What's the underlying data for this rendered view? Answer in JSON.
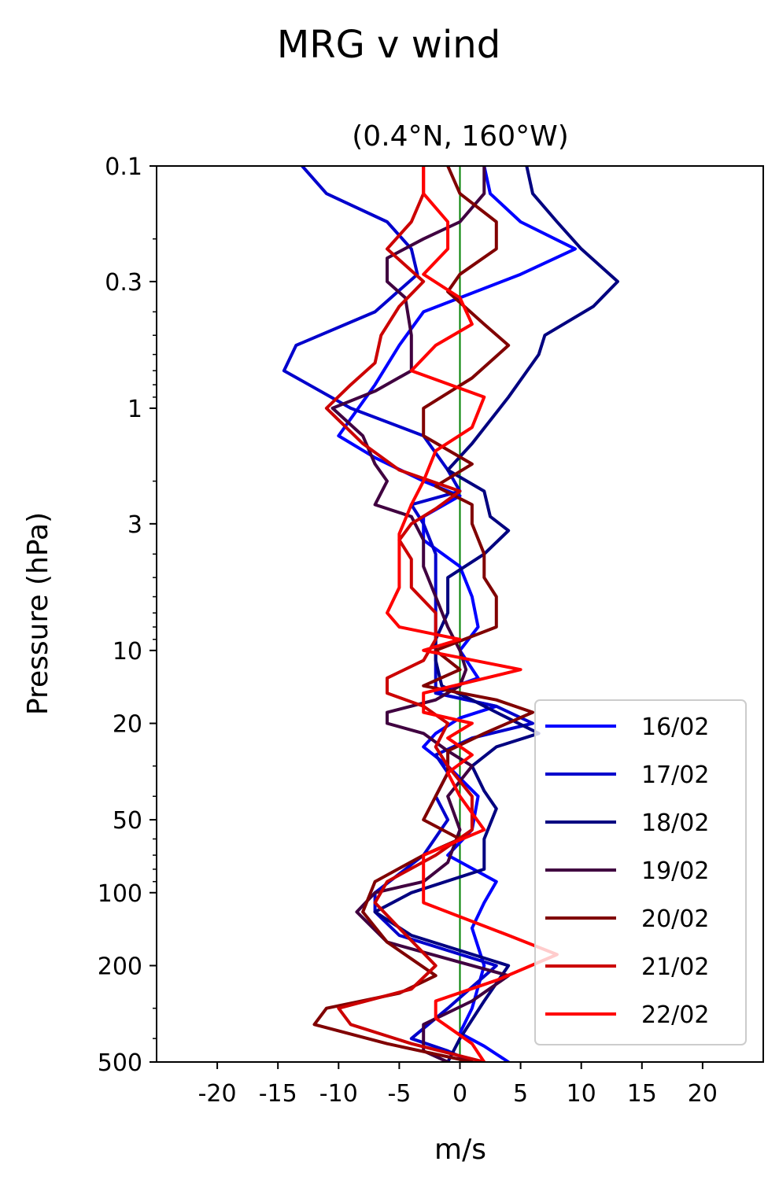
{
  "title": "MRG v wind",
  "chart_data": {
    "type": "line",
    "title": "(0.4°N, 160°W)",
    "xlabel": "m/s",
    "ylabel": "Pressure (hPa)",
    "xlim": [
      -25,
      25
    ],
    "ylim": [
      500,
      0.1
    ],
    "yscale": "log",
    "xticks": [
      -20,
      -15,
      -10,
      -5,
      0,
      5,
      10,
      15,
      20
    ],
    "xtick_labels": [
      "-20",
      "-15",
      "-10",
      "-5",
      "0",
      "5",
      "10",
      "15",
      "20"
    ],
    "yticks": [
      0.1,
      0.3,
      1,
      3,
      10,
      20,
      50,
      100,
      200,
      500
    ],
    "ytick_labels": [
      "0.1",
      "0.3",
      "1",
      "3",
      "10",
      "20",
      "50",
      "100",
      "200",
      "500"
    ],
    "reference_line": {
      "x": 0,
      "color": "#008000"
    },
    "legend_position": "lower-right",
    "grid": false,
    "series": [
      {
        "name": "16/02",
        "color": "#0000ff",
        "points": [
          [
            2,
            0.1
          ],
          [
            2.5,
            0.13
          ],
          [
            5,
            0.17
          ],
          [
            9.5,
            0.22
          ],
          [
            5,
            0.28
          ],
          [
            -3,
            0.4
          ],
          [
            -5,
            0.55
          ],
          [
            -7,
            0.8
          ],
          [
            -10,
            1.3
          ],
          [
            -7,
            1.6
          ],
          [
            -3,
            2.0
          ],
          [
            0,
            2.3
          ],
          [
            -3,
            2.8
          ],
          [
            -3,
            3.5
          ],
          [
            0,
            4.5
          ],
          [
            1,
            6
          ],
          [
            1.5,
            8
          ],
          [
            0,
            10
          ],
          [
            1.5,
            13
          ],
          [
            -2,
            15
          ],
          [
            3,
            17
          ],
          [
            0,
            19
          ],
          [
            -2,
            22
          ],
          [
            -3,
            25
          ],
          [
            -1,
            30
          ],
          [
            1.5,
            40
          ],
          [
            1,
            55
          ],
          [
            -1,
            70
          ],
          [
            3,
            90
          ],
          [
            2,
            110
          ],
          [
            1,
            140
          ],
          [
            2,
            200
          ],
          [
            1,
            300
          ],
          [
            0,
            380
          ],
          [
            2,
            430
          ],
          [
            4,
            500
          ]
        ]
      },
      {
        "name": "17/02",
        "color": "#0000cc",
        "points": [
          [
            -13,
            0.1
          ],
          [
            -11,
            0.13
          ],
          [
            -6,
            0.17
          ],
          [
            -4,
            0.22
          ],
          [
            -3.5,
            0.28
          ],
          [
            -7,
            0.4
          ],
          [
            -13.5,
            0.55
          ],
          [
            -14.5,
            0.7
          ],
          [
            -9,
            1.0
          ],
          [
            -3,
            1.3
          ],
          [
            -1,
            1.8
          ],
          [
            0,
            2.2
          ],
          [
            -4,
            2.5
          ],
          [
            -3,
            3.0
          ],
          [
            -2,
            4
          ],
          [
            -2,
            6
          ],
          [
            -2,
            8
          ],
          [
            -2,
            10
          ],
          [
            -2,
            13
          ],
          [
            -2,
            15
          ],
          [
            3,
            17
          ],
          [
            6,
            20
          ],
          [
            1,
            23
          ],
          [
            -2,
            27
          ],
          [
            -1,
            32
          ],
          [
            -2,
            40
          ],
          [
            -1,
            50
          ],
          [
            -3,
            70
          ],
          [
            -7,
            100
          ],
          [
            -7,
            120
          ],
          [
            -5,
            150
          ],
          [
            3,
            200
          ],
          [
            -1,
            300
          ],
          [
            -4,
            400
          ],
          [
            -1,
            450
          ],
          [
            1,
            500
          ]
        ]
      },
      {
        "name": "18/02",
        "color": "#000080",
        "points": [
          [
            5.5,
            0.1
          ],
          [
            6,
            0.13
          ],
          [
            8,
            0.17
          ],
          [
            10,
            0.22
          ],
          [
            13,
            0.3
          ],
          [
            11,
            0.38
          ],
          [
            7,
            0.5
          ],
          [
            6.5,
            0.6
          ],
          [
            4,
            0.9
          ],
          [
            1,
            1.4
          ],
          [
            -1,
            1.8
          ],
          [
            2,
            2.2
          ],
          [
            2.5,
            2.8
          ],
          [
            4,
            3.2
          ],
          [
            2,
            4
          ],
          [
            -1,
            5
          ],
          [
            -1,
            7
          ],
          [
            -2,
            9
          ],
          [
            -2,
            11
          ],
          [
            -1.5,
            14
          ],
          [
            1,
            16
          ],
          [
            3,
            18
          ],
          [
            6.5,
            22
          ],
          [
            3,
            25
          ],
          [
            1,
            30
          ],
          [
            2,
            38
          ],
          [
            3,
            45
          ],
          [
            2,
            60
          ],
          [
            2,
            80
          ],
          [
            -4,
            100
          ],
          [
            -7,
            120
          ],
          [
            -4,
            150
          ],
          [
            4,
            200
          ],
          [
            2,
            280
          ],
          [
            0,
            400
          ],
          [
            -1,
            500
          ]
        ]
      },
      {
        "name": "19/02",
        "color": "#400040",
        "points": [
          [
            2,
            0.1
          ],
          [
            2,
            0.13
          ],
          [
            0,
            0.17
          ],
          [
            -3,
            0.2
          ],
          [
            -6,
            0.24
          ],
          [
            -6,
            0.3
          ],
          [
            -4.5,
            0.35
          ],
          [
            -4,
            0.5
          ],
          [
            -4,
            0.7
          ],
          [
            -7,
            0.85
          ],
          [
            -10.5,
            1.0
          ],
          [
            -8,
            1.3
          ],
          [
            -7,
            1.7
          ],
          [
            -6,
            2.0
          ],
          [
            -7,
            2.5
          ],
          [
            -4,
            2.8
          ],
          [
            -3,
            3.5
          ],
          [
            -3,
            4.5
          ],
          [
            -2,
            6
          ],
          [
            -1,
            8
          ],
          [
            0,
            10
          ],
          [
            0.5,
            12
          ],
          [
            0,
            14
          ],
          [
            -2,
            16
          ],
          [
            -6,
            18
          ],
          [
            -6,
            20
          ],
          [
            -3,
            22
          ],
          [
            -1,
            26
          ],
          [
            1,
            30
          ],
          [
            -1,
            40
          ],
          [
            0,
            55
          ],
          [
            -1,
            75
          ],
          [
            -3,
            90
          ],
          [
            -7,
            100
          ],
          [
            -8.5,
            120
          ],
          [
            -6,
            160
          ],
          [
            4,
            220
          ],
          [
            1,
            280
          ],
          [
            -3,
            350
          ],
          [
            -3,
            450
          ],
          [
            -1,
            500
          ]
        ]
      },
      {
        "name": "20/02",
        "color": "#800000",
        "points": [
          [
            -1,
            0.1
          ],
          [
            0,
            0.13
          ],
          [
            3,
            0.17
          ],
          [
            3,
            0.22
          ],
          [
            0,
            0.28
          ],
          [
            -1,
            0.33
          ],
          [
            2,
            0.45
          ],
          [
            4,
            0.55
          ],
          [
            1,
            0.75
          ],
          [
            -3,
            1.0
          ],
          [
            -3,
            1.3
          ],
          [
            1,
            1.7
          ],
          [
            -2,
            2.1
          ],
          [
            1,
            2.5
          ],
          [
            1,
            3
          ],
          [
            2,
            4
          ],
          [
            2,
            5
          ],
          [
            3,
            6
          ],
          [
            3,
            8
          ],
          [
            -2,
            10
          ],
          [
            0,
            12
          ],
          [
            -3,
            14
          ],
          [
            3,
            16
          ],
          [
            6,
            18
          ],
          [
            2,
            22
          ],
          [
            -1,
            26
          ],
          [
            -1,
            32
          ],
          [
            -2,
            40
          ],
          [
            -3,
            50
          ],
          [
            0,
            60
          ],
          [
            -3,
            70
          ],
          [
            -7,
            90
          ],
          [
            -8,
            120
          ],
          [
            -6,
            160
          ],
          [
            -2,
            220
          ],
          [
            -5,
            260
          ],
          [
            -11,
            300
          ],
          [
            -12,
            350
          ],
          [
            -6,
            420
          ],
          [
            1,
            500
          ]
        ]
      },
      {
        "name": "21/02",
        "color": "#cc0000",
        "points": [
          [
            -3,
            0.1
          ],
          [
            -3,
            0.13
          ],
          [
            -4,
            0.17
          ],
          [
            -6,
            0.22
          ],
          [
            -3,
            0.3
          ],
          [
            -5,
            0.38
          ],
          [
            -6.5,
            0.5
          ],
          [
            -7,
            0.65
          ],
          [
            -9,
            0.8
          ],
          [
            -11,
            1.0
          ],
          [
            -8,
            1.4
          ],
          [
            -5,
            1.8
          ],
          [
            0,
            2.2
          ],
          [
            -2,
            2.6
          ],
          [
            -4,
            3.0
          ],
          [
            -5,
            3.5
          ],
          [
            -4,
            4.2
          ],
          [
            -4,
            5.5
          ],
          [
            -2,
            7
          ],
          [
            -2,
            9
          ],
          [
            -3,
            11
          ],
          [
            -6,
            13
          ],
          [
            -6,
            15
          ],
          [
            -3,
            17
          ],
          [
            -1,
            20
          ],
          [
            -2,
            25
          ],
          [
            -1,
            30
          ],
          [
            1,
            40
          ],
          [
            1,
            55
          ],
          [
            -2,
            70
          ],
          [
            -6,
            90
          ],
          [
            -7,
            110
          ],
          [
            -5,
            140
          ],
          [
            -2,
            200
          ],
          [
            -4,
            250
          ],
          [
            -10,
            300
          ],
          [
            -9,
            350
          ],
          [
            -4,
            420
          ],
          [
            2,
            500
          ]
        ]
      },
      {
        "name": "22/02",
        "color": "#ff0000",
        "points": [
          [
            -3,
            0.1
          ],
          [
            -3,
            0.13
          ],
          [
            -1,
            0.17
          ],
          [
            -1,
            0.22
          ],
          [
            -3,
            0.28
          ],
          [
            0,
            0.35
          ],
          [
            1,
            0.45
          ],
          [
            -2,
            0.55
          ],
          [
            -4,
            0.7
          ],
          [
            2,
            0.9
          ],
          [
            1,
            1.2
          ],
          [
            -2,
            1.5
          ],
          [
            -3,
            2.0
          ],
          [
            -4,
            2.5
          ],
          [
            -5,
            3.3
          ],
          [
            -5,
            4.5
          ],
          [
            -5,
            5.5
          ],
          [
            -6,
            7
          ],
          [
            -5,
            8
          ],
          [
            0,
            9
          ],
          [
            -3,
            10
          ],
          [
            5,
            12
          ],
          [
            -3,
            15
          ],
          [
            -3,
            18
          ],
          [
            1,
            20
          ],
          [
            -1,
            23
          ],
          [
            1,
            27
          ],
          [
            -1,
            32
          ],
          [
            0,
            40
          ],
          [
            2,
            55
          ],
          [
            -3,
            70
          ],
          [
            -3,
            90
          ],
          [
            -3,
            110
          ],
          [
            4,
            150
          ],
          [
            8,
            180
          ],
          [
            3,
            230
          ],
          [
            -2,
            280
          ],
          [
            -2,
            330
          ],
          [
            1,
            420
          ],
          [
            2,
            500
          ]
        ]
      }
    ]
  }
}
